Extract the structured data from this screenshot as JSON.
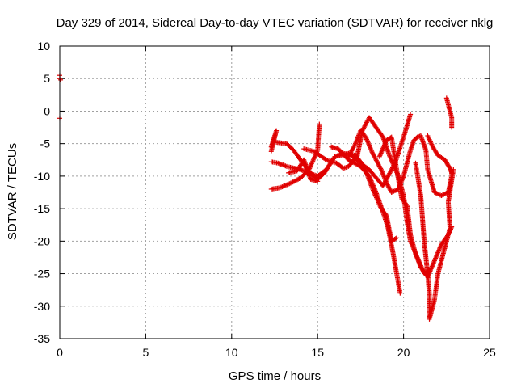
{
  "chart_data": {
    "type": "scatter",
    "title": "Day 329 of 2014, Sidereal Day-to-day VTEC variation (SDTVAR) for receiver nklg",
    "xlabel": "GPS time / hours",
    "ylabel": "SDTVAR / TECUs",
    "xlim": [
      0,
      25
    ],
    "ylim": [
      -35,
      10
    ],
    "xticks": [
      0,
      5,
      10,
      15,
      20,
      25
    ],
    "yticks": [
      10,
      5,
      0,
      -5,
      -10,
      -15,
      -20,
      -25,
      -30,
      -35
    ],
    "grid": true,
    "marker": "+",
    "color": "#e00000",
    "series": [
      {
        "points": [
          [
            0.0,
            5.5
          ],
          [
            0.0,
            5.0
          ],
          [
            0.05,
            4.8
          ],
          [
            0.0,
            -1.1
          ]
        ]
      },
      {
        "points": [
          [
            12.3,
            -6.2
          ],
          [
            12.6,
            -3.0
          ],
          [
            12.3,
            -5.5
          ]
        ]
      },
      {
        "points": [
          [
            12.3,
            -12.0
          ],
          [
            12.8,
            -11.8
          ],
          [
            13.5,
            -11.0
          ],
          [
            14.0,
            -10.3
          ],
          [
            14.5,
            -9.0
          ],
          [
            15.0,
            -6.0
          ],
          [
            15.1,
            -2.0
          ]
        ]
      },
      {
        "points": [
          [
            12.3,
            -7.8
          ],
          [
            12.7,
            -8.0
          ],
          [
            13.2,
            -8.5
          ],
          [
            14.0,
            -9.0
          ],
          [
            14.6,
            -9.6
          ],
          [
            15.0,
            -10.5
          ],
          [
            15.4,
            -9.5
          ],
          [
            16.0,
            -7.0
          ],
          [
            16.8,
            -6.5
          ],
          [
            17.5,
            -8.0
          ],
          [
            18.0,
            -9.0
          ],
          [
            18.8,
            -11.5
          ],
          [
            19.5,
            -8.0
          ],
          [
            20.0,
            -4.0
          ],
          [
            20.4,
            -0.5
          ]
        ]
      },
      {
        "points": [
          [
            12.6,
            -4.8
          ],
          [
            13.2,
            -5.0
          ],
          [
            13.6,
            -6.0
          ],
          [
            14.0,
            -7.5
          ],
          [
            14.3,
            -8.5
          ],
          [
            14.6,
            -10.5
          ],
          [
            15.0,
            -10.8
          ]
        ]
      },
      {
        "points": [
          [
            13.3,
            -9.5
          ],
          [
            13.8,
            -9.2
          ],
          [
            14.2,
            -7.5
          ],
          [
            14.5,
            -9.5
          ],
          [
            15.0,
            -10.0
          ],
          [
            15.5,
            -9.0
          ],
          [
            16.0,
            -7.0
          ],
          [
            16.5,
            -6.5
          ],
          [
            17.2,
            -6.8
          ],
          [
            17.7,
            -8.5
          ],
          [
            18.2,
            -12.0
          ],
          [
            18.7,
            -15.0
          ],
          [
            19.0,
            -16.0
          ],
          [
            19.3,
            -20.0
          ],
          [
            19.6,
            -19.5
          ]
        ]
      },
      {
        "points": [
          [
            14.2,
            -5.8
          ],
          [
            14.8,
            -6.2
          ],
          [
            15.5,
            -7.5
          ],
          [
            16.1,
            -8.0
          ],
          [
            16.5,
            -8.8
          ],
          [
            16.8,
            -8.5
          ],
          [
            17.3,
            -7.0
          ],
          [
            17.6,
            -3.0
          ],
          [
            18.0,
            -1.0
          ],
          [
            18.4,
            -2.5
          ],
          [
            18.8,
            -4.0
          ],
          [
            19.2,
            -7.0
          ],
          [
            19.7,
            -10.0
          ],
          [
            20.0,
            -13.0
          ],
          [
            20.2,
            -17.0
          ],
          [
            20.4,
            -20.0
          ],
          [
            20.8,
            -22.5
          ],
          [
            21.2,
            -25.0
          ],
          [
            21.5,
            -24.5
          ]
        ]
      },
      {
        "points": [
          [
            15.8,
            -5.5
          ],
          [
            16.2,
            -5.8
          ],
          [
            16.8,
            -7.5
          ],
          [
            17.5,
            -8.5
          ],
          [
            18.0,
            -10.0
          ],
          [
            18.4,
            -12.5
          ],
          [
            18.8,
            -15.5
          ],
          [
            19.1,
            -18.0
          ],
          [
            19.4,
            -22.0
          ],
          [
            19.6,
            -25.0
          ],
          [
            19.8,
            -28.0
          ]
        ]
      },
      {
        "points": [
          [
            16.8,
            -7.0
          ],
          [
            17.2,
            -5.0
          ],
          [
            17.5,
            -3.0
          ],
          [
            17.8,
            -4.0
          ],
          [
            18.2,
            -6.5
          ],
          [
            18.7,
            -9.0
          ],
          [
            19.0,
            -11.0
          ],
          [
            19.3,
            -12.5
          ],
          [
            19.7,
            -12.0
          ],
          [
            20.0,
            -10.0
          ],
          [
            20.4,
            -6.0
          ],
          [
            20.6,
            -4.5
          ],
          [
            20.8,
            -4.0
          ],
          [
            21.0,
            -3.8
          ],
          [
            21.3,
            -6.0
          ],
          [
            21.4,
            -9.0
          ],
          [
            21.8,
            -12.5
          ],
          [
            22.2,
            -13.0
          ],
          [
            22.6,
            -12.5
          ],
          [
            22.8,
            -10.0
          ],
          [
            22.8,
            -9.0
          ]
        ]
      },
      {
        "points": [
          [
            18.6,
            -7.0
          ],
          [
            19.0,
            -4.5
          ],
          [
            19.3,
            -4.0
          ],
          [
            19.6,
            -9.0
          ],
          [
            19.9,
            -13.5
          ],
          [
            20.2,
            -14.5
          ],
          [
            20.4,
            -19.0
          ],
          [
            20.7,
            -22.0
          ],
          [
            21.0,
            -24.0
          ],
          [
            21.4,
            -25.5
          ],
          [
            21.8,
            -23.0
          ],
          [
            22.2,
            -20.5
          ],
          [
            22.6,
            -19.0
          ],
          [
            22.8,
            -17.8
          ]
        ]
      },
      {
        "points": [
          [
            20.7,
            -8.0
          ],
          [
            21.0,
            -13.0
          ],
          [
            21.2,
            -20.0
          ],
          [
            21.4,
            -25.0
          ],
          [
            21.5,
            -28.0
          ],
          [
            21.5,
            -32.0
          ],
          [
            21.8,
            -29.0
          ],
          [
            22.0,
            -25.0
          ],
          [
            22.2,
            -23.0
          ],
          [
            22.5,
            -20.0
          ],
          [
            22.7,
            -18.0
          ],
          [
            22.6,
            -14.0
          ],
          [
            22.9,
            -9.0
          ]
        ]
      },
      {
        "points": [
          [
            21.4,
            -3.8
          ],
          [
            21.7,
            -5.5
          ],
          [
            22.0,
            -6.8
          ],
          [
            22.4,
            -7.5
          ],
          [
            22.7,
            -8.8
          ],
          [
            22.8,
            -9.5
          ]
        ]
      },
      {
        "points": [
          [
            22.5,
            2.0
          ],
          [
            22.6,
            1.0
          ],
          [
            22.7,
            0.0
          ],
          [
            22.8,
            -1.0
          ],
          [
            22.8,
            -2.5
          ]
        ]
      }
    ]
  }
}
